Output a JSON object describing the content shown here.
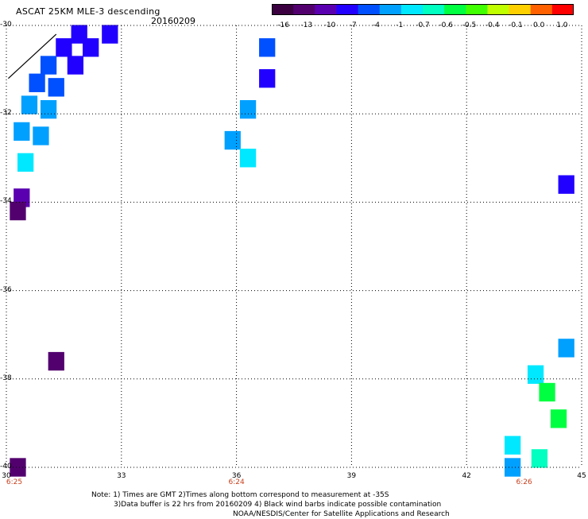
{
  "header": {
    "title": "ASCAT 25KM MLE-3 descending",
    "date": "20160209"
  },
  "colorbar": {
    "labels": [
      "-16",
      "-13",
      "-10",
      "-7",
      "-4",
      "-1",
      "-0.7",
      "-0.6",
      "-0.5",
      "-0.4",
      "-0.1",
      "0.0",
      "1.0"
    ],
    "colors": [
      "#3a0040",
      "#52006e",
      "#5a00b0",
      "#2200ff",
      "#0050ff",
      "#00a0ff",
      "#00e8ff",
      "#00ffc0",
      "#00ff40",
      "#40ff00",
      "#c0ff00",
      "#ffd000",
      "#ff6000",
      "#ff0000"
    ]
  },
  "axes": {
    "y_ticks": [
      "-30",
      "-32",
      "-34",
      "-36",
      "-38",
      "-40"
    ],
    "x_ticks": [
      "30",
      "33",
      "36",
      "39",
      "42",
      "45"
    ],
    "time_labels": [
      "6:25",
      "6:24",
      "6:26"
    ],
    "time_positions": [
      30,
      36,
      43.5
    ]
  },
  "grid": true,
  "notes": {
    "line1": "Note: 1) Times are GMT 2)Times along bottom correspond to measurement at -35S",
    "line2": "3)Data buffer is 22 hrs from 20160209 4) Black wind barbs indicate possible contamination",
    "line3": "NOAA/NESDIS/Center for Satellite Applications and Research"
  },
  "chart_data": {
    "type": "heatmap",
    "variable": "MLE",
    "xlim": [
      30,
      45
    ],
    "ylim": [
      -40,
      -30
    ],
    "cells": [
      {
        "lon": 31.9,
        "lat": -30.2,
        "val": -7
      },
      {
        "lon": 32.7,
        "lat": -30.2,
        "val": -7
      },
      {
        "lon": 31.5,
        "lat": -30.5,
        "val": -8
      },
      {
        "lon": 32.2,
        "lat": -30.5,
        "val": -7
      },
      {
        "lon": 31.1,
        "lat": -30.9,
        "val": -5
      },
      {
        "lon": 31.8,
        "lat": -30.9,
        "val": -7
      },
      {
        "lon": 30.8,
        "lat": -31.3,
        "val": -4
      },
      {
        "lon": 31.3,
        "lat": -31.4,
        "val": -4
      },
      {
        "lon": 30.6,
        "lat": -31.8,
        "val": -3
      },
      {
        "lon": 31.1,
        "lat": -31.9,
        "val": -2
      },
      {
        "lon": 30.4,
        "lat": -32.4,
        "val": -1
      },
      {
        "lon": 30.9,
        "lat": -32.5,
        "val": -1
      },
      {
        "lon": 30.5,
        "lat": -33.1,
        "val": -0.7
      },
      {
        "lon": 30.4,
        "lat": -33.9,
        "val": -12
      },
      {
        "lon": 30.3,
        "lat": -34.2,
        "val": -13
      },
      {
        "lon": 31.3,
        "lat": -37.6,
        "val": -14
      },
      {
        "lon": 30.3,
        "lat": -40.0,
        "val": -15
      },
      {
        "lon": 36.8,
        "lat": -30.5,
        "val": -5
      },
      {
        "lon": 36.8,
        "lat": -31.2,
        "val": -7
      },
      {
        "lon": 36.3,
        "lat": -31.9,
        "val": -3
      },
      {
        "lon": 35.9,
        "lat": -32.6,
        "val": -1
      },
      {
        "lon": 36.3,
        "lat": -33.0,
        "val": -0.7
      },
      {
        "lon": 44.6,
        "lat": -33.6,
        "val": -7
      },
      {
        "lon": 44.6,
        "lat": -37.3,
        "val": -1
      },
      {
        "lon": 43.8,
        "lat": -37.9,
        "val": -0.7
      },
      {
        "lon": 44.1,
        "lat": -38.3,
        "val": -0.5
      },
      {
        "lon": 44.4,
        "lat": -38.9,
        "val": -0.5
      },
      {
        "lon": 43.2,
        "lat": -39.5,
        "val": -0.7
      },
      {
        "lon": 43.9,
        "lat": -39.8,
        "val": -0.6
      },
      {
        "lon": 43.2,
        "lat": -40.0,
        "val": -1
      }
    ]
  }
}
